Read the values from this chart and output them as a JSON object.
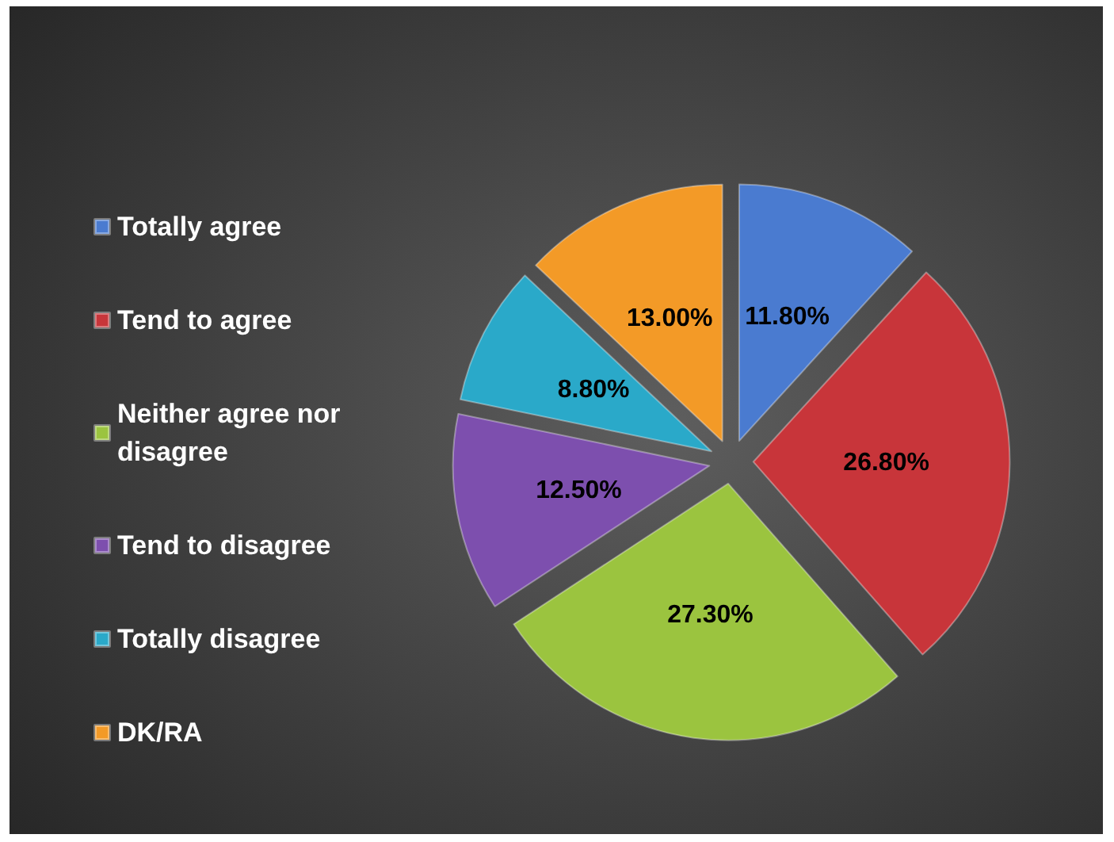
{
  "chart_data": {
    "type": "pie",
    "categories": [
      "Totally agree",
      "Tend to agree",
      "Neither agree nor disagree",
      "Tend to disagree",
      "Totally disagree",
      "DK/RA"
    ],
    "values": [
      11.8,
      26.8,
      27.3,
      12.5,
      8.8,
      13.0
    ],
    "value_labels": [
      "11.80%",
      "26.80%",
      "27.30%",
      "12.50%",
      "8.80%",
      "13.00%"
    ],
    "colors": [
      "#4a7bd0",
      "#c8353a",
      "#9bc43f",
      "#7d4fae",
      "#2aa9c9",
      "#f39a27"
    ],
    "legend": "left"
  }
}
